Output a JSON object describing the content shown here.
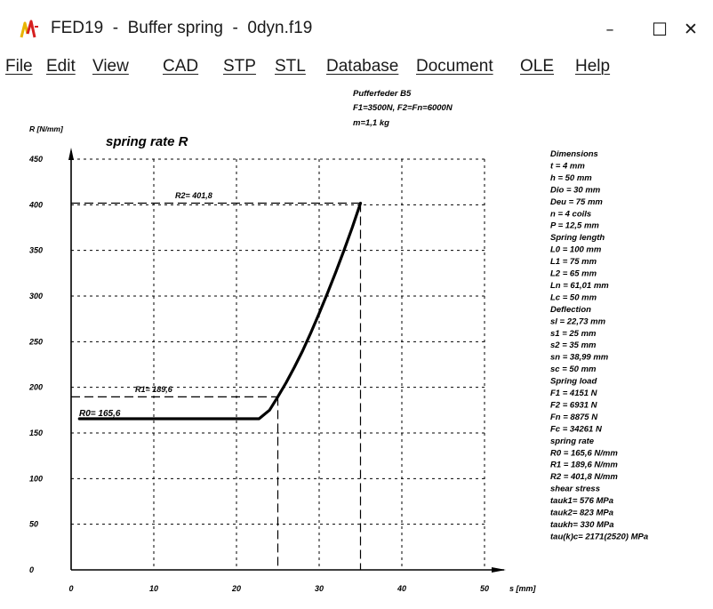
{
  "window": {
    "title": "FED19  -  Buffer spring  -  0dyn.f19",
    "controls": {
      "minimize": "–",
      "maximize": "☐",
      "close": "✕"
    },
    "accent_colors": [
      "#e8b400",
      "#d62020"
    ]
  },
  "menubar": {
    "items": [
      {
        "label": "File"
      },
      {
        "label": "Edit"
      },
      {
        "label": "View"
      },
      {
        "label": "CAD"
      },
      {
        "label": "STP"
      },
      {
        "label": "STL"
      },
      {
        "label": "Database"
      },
      {
        "label": "Document"
      },
      {
        "label": "OLE"
      },
      {
        "label": "Help"
      }
    ]
  },
  "header_note": [
    "Pufferfeder  B5",
    "F1=3500N, F2=Fn=6000N",
    "m=1,1 kg"
  ],
  "info_panel": [
    "Dimensions",
    "t  = 4 mm",
    "h  = 50 mm",
    "Dio = 30 mm",
    "Deu = 75 mm",
    "n  = 4 coils",
    "P = 12,5 mm",
    "Spring length",
    "L0 = 100 mm",
    "L1 = 75 mm",
    "L2 = 65 mm",
    "Ln = 61,01 mm",
    "Lc = 50 mm",
    "Deflection",
    "sl = 22,73 mm",
    "s1 = 25 mm",
    "s2 = 35 mm",
    "sn = 38,99 mm",
    "sc = 50 mm",
    "Spring load",
    "F1 = 4151 N",
    "F2 = 6931 N",
    "Fn = 8875 N",
    "Fc = 34261 N",
    "spring rate",
    "R0 = 165,6 N/mm",
    "R1 = 189,6 N/mm",
    "R2 = 401,8 N/mm",
    "shear stress",
    "tauk1=  576 MPa",
    "tauk2=  823 MPa",
    "taukh=  330 MPa",
    "tau(k)c= 2171(2520) MPa"
  ],
  "chart_data": {
    "type": "line",
    "title": "spring rate R",
    "xlabel": "s [mm]",
    "ylabel": "R [N/mm]",
    "xlim": [
      0,
      50
    ],
    "ylim": [
      0,
      450
    ],
    "xticks": [
      0,
      10,
      20,
      30,
      40,
      50
    ],
    "yticks": [
      0,
      50,
      100,
      150,
      200,
      250,
      300,
      350,
      400,
      450
    ],
    "grid": "dashed",
    "series": [
      {
        "x": [
          1,
          5,
          10,
          15,
          20,
          22.73,
          24,
          25,
          26,
          27,
          28,
          29,
          30,
          31,
          32,
          33,
          34,
          35
        ],
        "y": [
          165.6,
          165.6,
          165.6,
          165.6,
          165.6,
          165.6,
          175,
          189.6,
          205,
          222,
          240,
          260,
          281,
          303,
          326,
          350,
          375,
          401.8
        ]
      }
    ],
    "annotations": [
      {
        "label": "R0= 165,6",
        "x": 0,
        "y": 165.6
      },
      {
        "label": "R1= 189,6",
        "x": 25,
        "y": 189.6
      },
      {
        "label": "R2= 401,8",
        "x": 35,
        "y": 401.8
      }
    ]
  }
}
